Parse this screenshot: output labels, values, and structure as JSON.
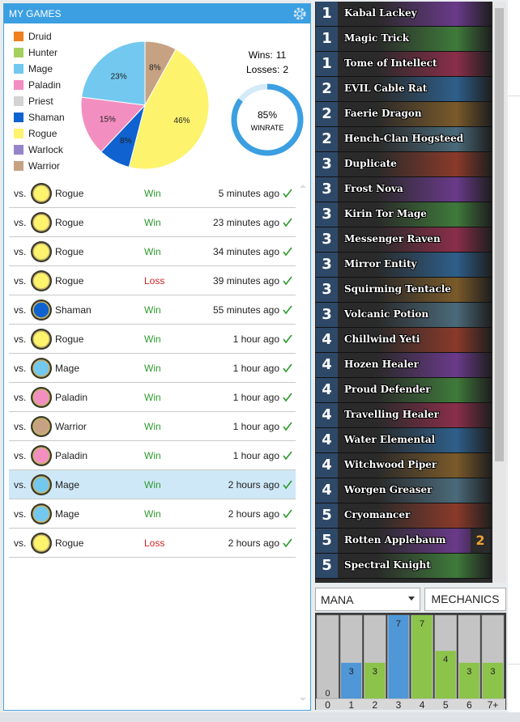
{
  "header": {
    "title": "MY GAMES"
  },
  "chart_data": [
    {
      "type": "pie",
      "categories": [
        "Druid",
        "Hunter",
        "Mage",
        "Paladin",
        "Priest",
        "Shaman",
        "Rogue",
        "Warlock",
        "Warrior"
      ],
      "values": [
        0,
        0,
        23,
        15,
        0,
        8,
        46,
        0,
        8
      ],
      "value_labels": [
        null,
        null,
        "23%",
        "15%",
        null,
        "8%",
        "46%",
        null,
        "8%"
      ],
      "colors": [
        "#f0801e",
        "#a6d05e",
        "#72c8ef",
        "#f28fc0",
        "#d3d3d3",
        "#0f62cf",
        "#fdf36d",
        "#9484c9",
        "#c6a283"
      ]
    },
    {
      "type": "bar",
      "categories": [
        "0",
        "1",
        "2",
        "3",
        "4",
        "5",
        "6",
        "7+"
      ],
      "values": [
        0,
        3,
        3,
        7,
        7,
        4,
        3,
        3
      ],
      "ylim": [
        0,
        7
      ],
      "colors": [
        "#8cc34a",
        "#4f97d6",
        "#8cc34a",
        "#4f97d6",
        "#8cc34a",
        "#8cc34a",
        "#8cc34a",
        "#8cc34a"
      ]
    }
  ],
  "stats": {
    "wins_label": "Wins:",
    "wins": 11,
    "losses_label": "Losses:",
    "losses": 2,
    "winrate": 85,
    "winrate_label": "85%",
    "winrate_caption": "WINRATE"
  },
  "games": {
    "prefix": "vs.",
    "selected": 10,
    "result_colors": {
      "Win": "#2e9a2e",
      "Loss": "#d42222"
    },
    "rows": [
      {
        "opponent": "Rogue",
        "result": "Win",
        "time": "5 minutes ago"
      },
      {
        "opponent": "Rogue",
        "result": "Win",
        "time": "23 minutes ago"
      },
      {
        "opponent": "Rogue",
        "result": "Win",
        "time": "34 minutes ago"
      },
      {
        "opponent": "Rogue",
        "result": "Loss",
        "time": "39 minutes ago"
      },
      {
        "opponent": "Shaman",
        "result": "Win",
        "time": "55 minutes ago"
      },
      {
        "opponent": "Rogue",
        "result": "Win",
        "time": "1 hour ago"
      },
      {
        "opponent": "Mage",
        "result": "Win",
        "time": "1 hour ago"
      },
      {
        "opponent": "Paladin",
        "result": "Win",
        "time": "1 hour ago"
      },
      {
        "opponent": "Warrior",
        "result": "Win",
        "time": "1 hour ago"
      },
      {
        "opponent": "Paladin",
        "result": "Win",
        "time": "1 hour ago"
      },
      {
        "opponent": "Mage",
        "result": "Win",
        "time": "2 hours ago"
      },
      {
        "opponent": "Mage",
        "result": "Win",
        "time": "2 hours ago"
      },
      {
        "opponent": "Rogue",
        "result": "Loss",
        "time": "2 hours ago"
      }
    ]
  },
  "deck": [
    {
      "cost": 1,
      "name": "Kabal Lackey"
    },
    {
      "cost": 1,
      "name": "Magic Trick"
    },
    {
      "cost": 1,
      "name": "Tome of Intellect"
    },
    {
      "cost": 2,
      "name": "EVIL Cable Rat"
    },
    {
      "cost": 2,
      "name": "Faerie Dragon"
    },
    {
      "cost": 2,
      "name": "Hench-Clan Hogsteed"
    },
    {
      "cost": 3,
      "name": "Duplicate"
    },
    {
      "cost": 3,
      "name": "Frost Nova"
    },
    {
      "cost": 3,
      "name": "Kirin Tor Mage"
    },
    {
      "cost": 3,
      "name": "Messenger Raven"
    },
    {
      "cost": 3,
      "name": "Mirror Entity"
    },
    {
      "cost": 3,
      "name": "Squirming Tentacle"
    },
    {
      "cost": 3,
      "name": "Volcanic Potion"
    },
    {
      "cost": 4,
      "name": "Chillwind Yeti"
    },
    {
      "cost": 4,
      "name": "Hozen Healer"
    },
    {
      "cost": 4,
      "name": "Proud Defender"
    },
    {
      "cost": 4,
      "name": "Travelling Healer"
    },
    {
      "cost": 4,
      "name": "Water Elemental"
    },
    {
      "cost": 4,
      "name": "Witchwood Piper"
    },
    {
      "cost": 4,
      "name": "Worgen Greaser"
    },
    {
      "cost": 5,
      "name": "Cryomancer"
    },
    {
      "cost": 5,
      "name": "Rotten Applebaum",
      "count": 2
    },
    {
      "cost": 5,
      "name": "Spectral Knight"
    }
  ],
  "controls": {
    "sort": "MANA",
    "mechanics": "MECHANICS"
  }
}
